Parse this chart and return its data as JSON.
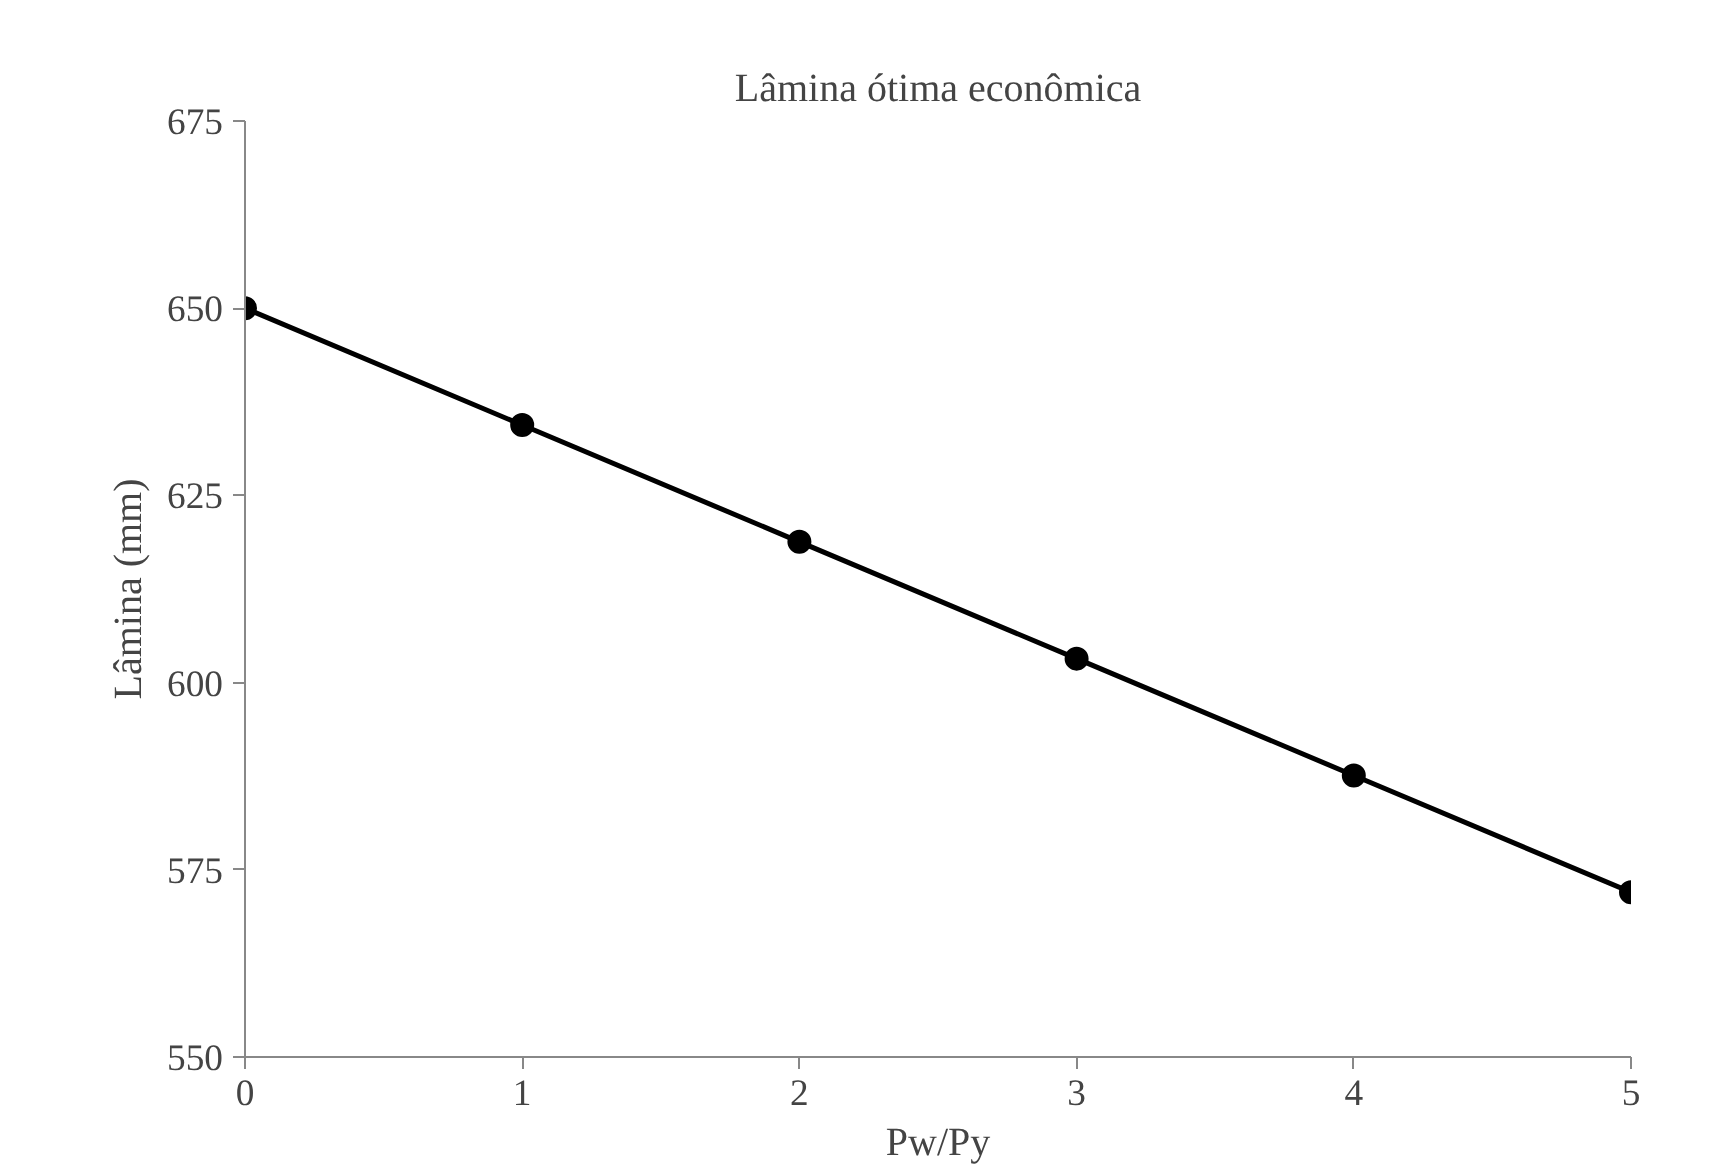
{
  "chart_data": {
    "type": "line",
    "title": "Lâmina ótima econômica",
    "xlabel": "Pw/Py",
    "ylabel": "Lâmina (mm)",
    "x": [
      0,
      1,
      2,
      3,
      4,
      5
    ],
    "series": [
      {
        "color": "#000000",
        "values": [
          650,
          634.4,
          618.8,
          603.2,
          587.6,
          572
        ]
      }
    ],
    "xlim": [
      0,
      5
    ],
    "xticks": [
      0,
      1,
      2,
      3,
      4,
      5
    ],
    "ylim": [
      550,
      675
    ],
    "yticks": [
      550,
      575,
      600,
      625,
      650,
      675
    ],
    "grid": false,
    "marker": "circle",
    "line_style": "solid"
  }
}
